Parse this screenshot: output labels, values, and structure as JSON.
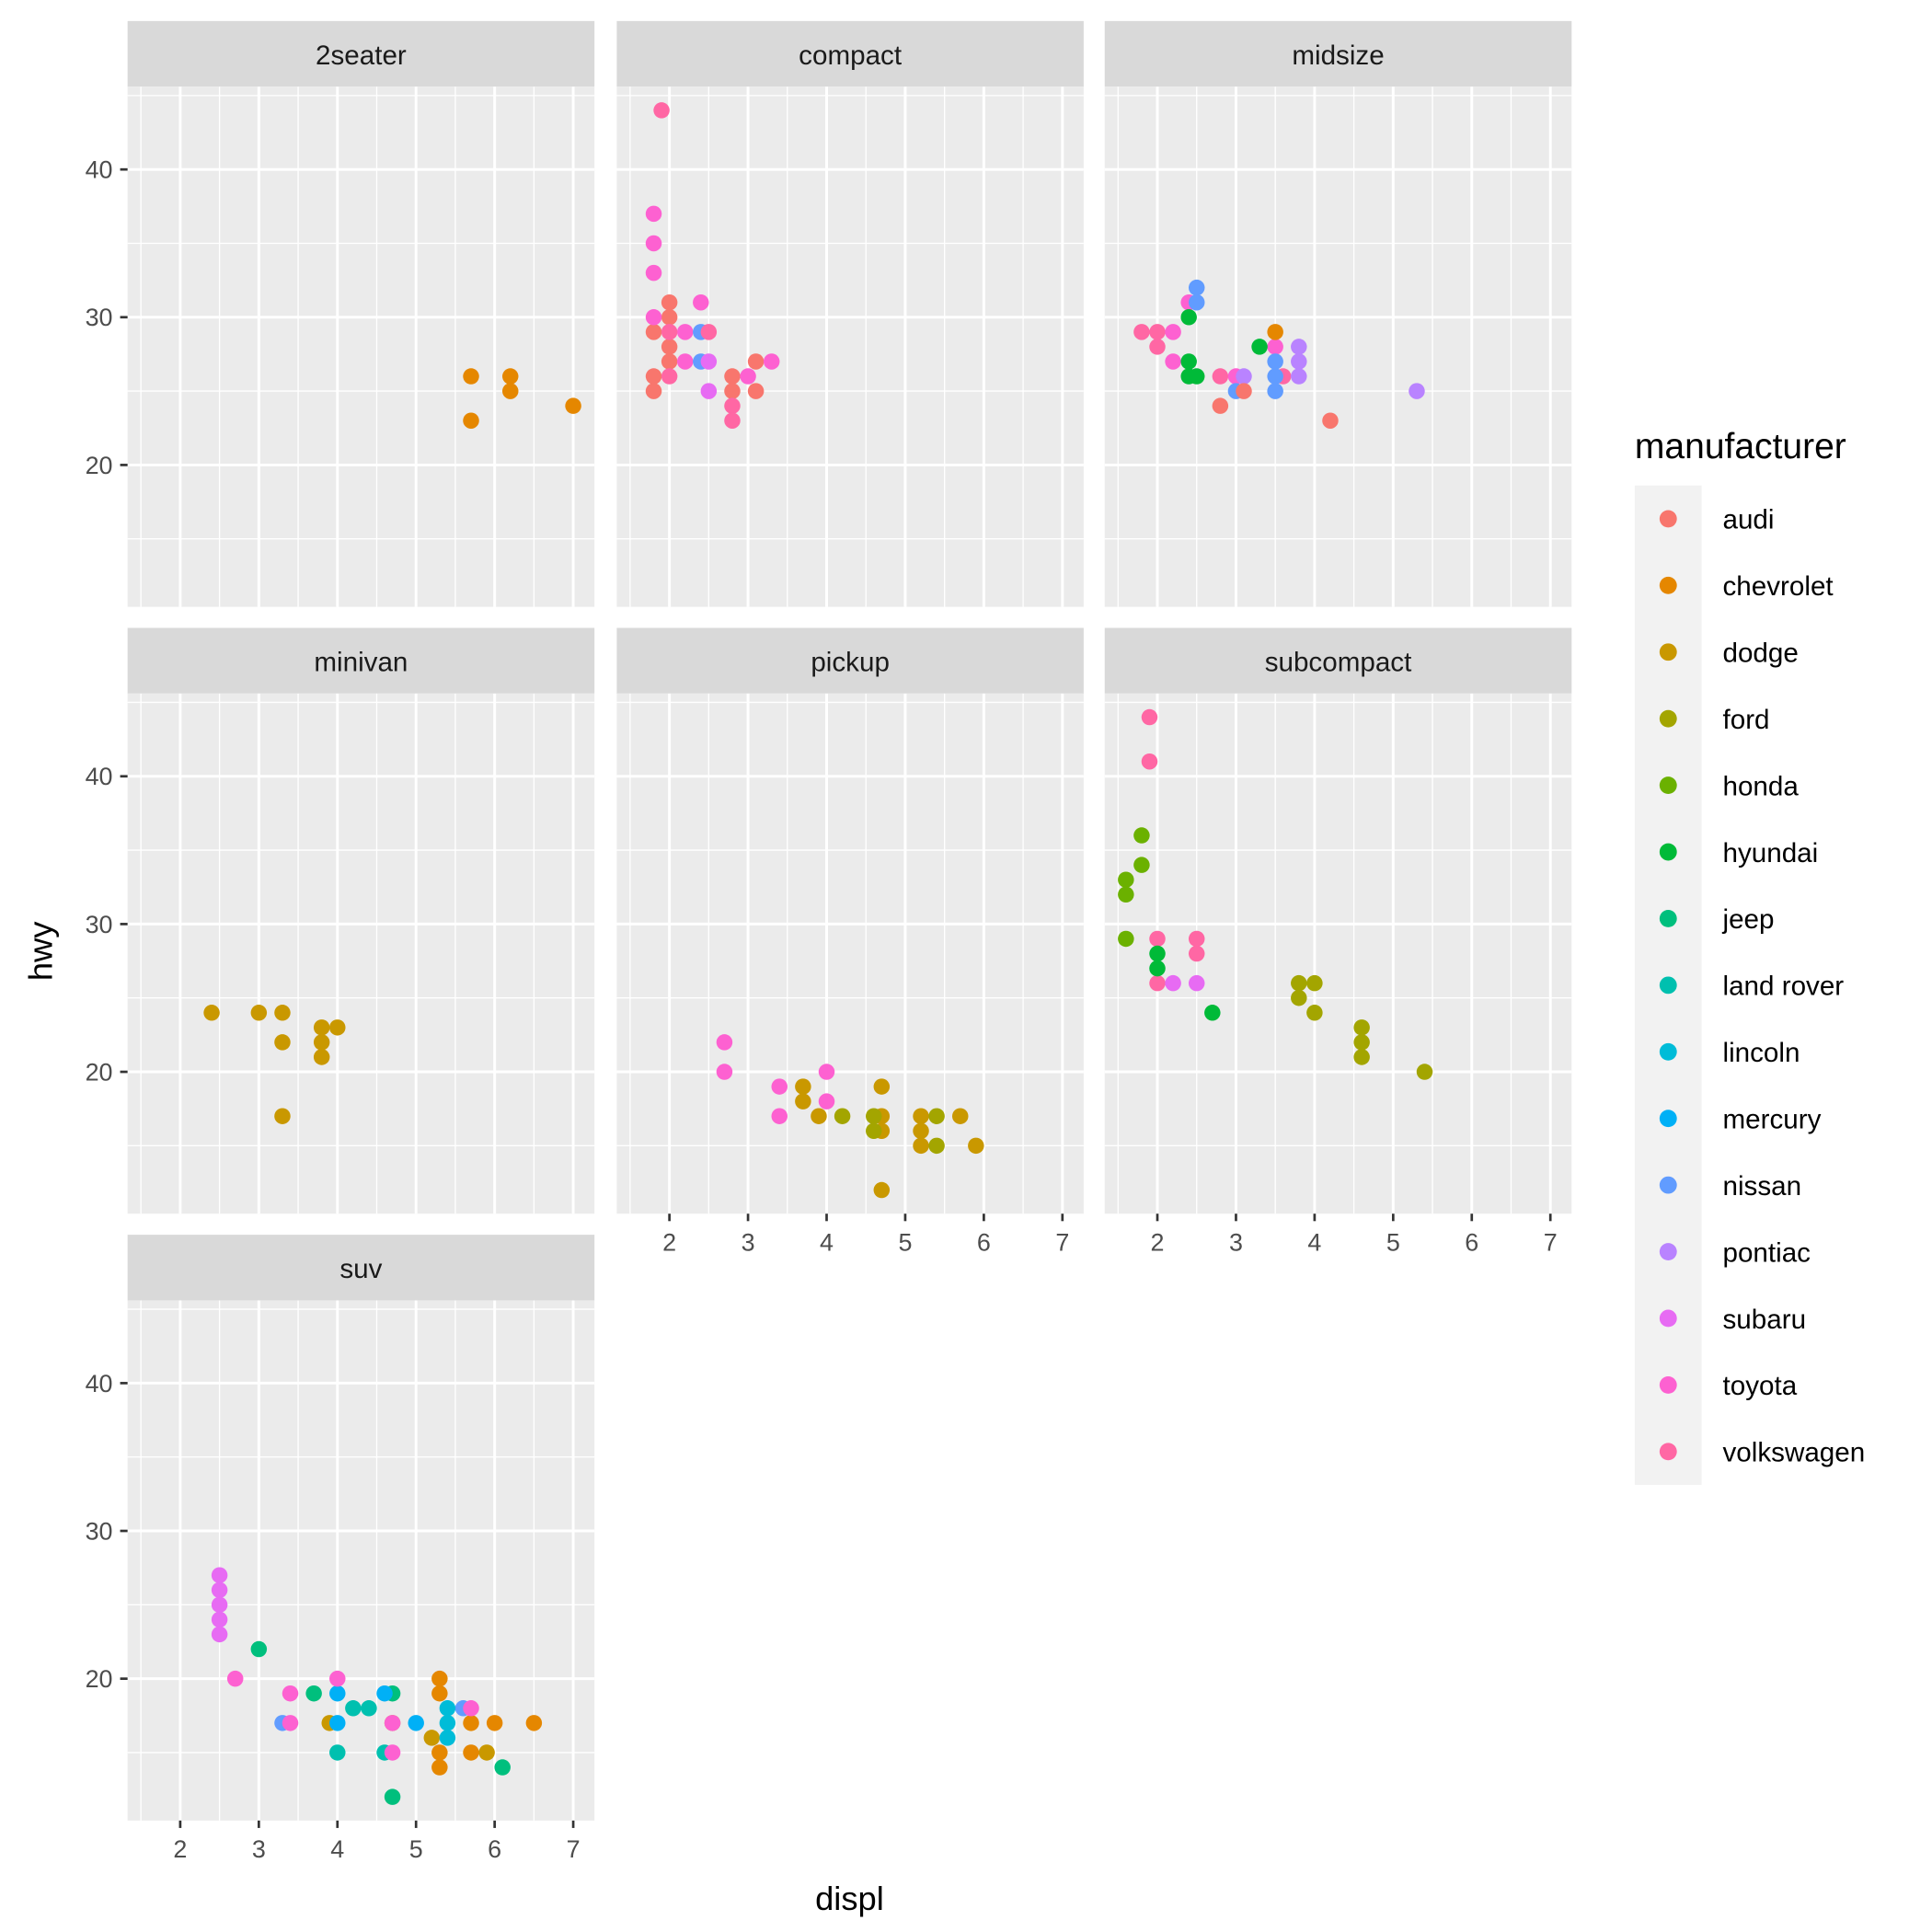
{
  "chart_data": {
    "type": "scatter",
    "facet_by": "class",
    "xlabel": "displ",
    "ylabel": "hwy",
    "xlim": [
      1.33,
      7.27
    ],
    "ylim": [
      10.4,
      45.6
    ],
    "x_ticks": [
      2,
      3,
      4,
      5,
      6,
      7
    ],
    "y_ticks": [
      20,
      30,
      40
    ],
    "grid": true,
    "legend": {
      "title": "manufacturer",
      "placement": "right",
      "entries": [
        {
          "name": "audi",
          "color": "#F8766D"
        },
        {
          "name": "chevrolet",
          "color": "#E58700"
        },
        {
          "name": "dodge",
          "color": "#C99800"
        },
        {
          "name": "ford",
          "color": "#A3A500"
        },
        {
          "name": "honda",
          "color": "#6BB100"
        },
        {
          "name": "hyundai",
          "color": "#00BA38"
        },
        {
          "name": "jeep",
          "color": "#00BF7D"
        },
        {
          "name": "land rover",
          "color": "#00C0AF"
        },
        {
          "name": "lincoln",
          "color": "#00BCD8"
        },
        {
          "name": "mercury",
          "color": "#00B0F6"
        },
        {
          "name": "nissan",
          "color": "#619CFF"
        },
        {
          "name": "pontiac",
          "color": "#B983FF"
        },
        {
          "name": "subaru",
          "color": "#E76BF3"
        },
        {
          "name": "toyota",
          "color": "#FD61D1"
        },
        {
          "name": "volkswagen",
          "color": "#FF67A4"
        }
      ]
    },
    "panels": [
      {
        "title": "2seater",
        "points": [
          [
            "chevrolet",
            5.7,
            26
          ],
          [
            "chevrolet",
            5.7,
            23
          ],
          [
            "chevrolet",
            6.2,
            26
          ],
          [
            "chevrolet",
            6.2,
            25
          ],
          [
            "chevrolet",
            7.0,
            24
          ]
        ]
      },
      {
        "title": "compact",
        "points": [
          [
            "audi",
            1.8,
            29
          ],
          [
            "audi",
            1.8,
            26
          ],
          [
            "audi",
            1.8,
            25
          ],
          [
            "audi",
            2.0,
            31
          ],
          [
            "audi",
            2.0,
            30
          ],
          [
            "audi",
            2.0,
            28
          ],
          [
            "audi",
            2.0,
            27
          ],
          [
            "audi",
            2.8,
            26
          ],
          [
            "audi",
            2.8,
            25
          ],
          [
            "audi",
            3.1,
            27
          ],
          [
            "audi",
            3.1,
            25
          ],
          [
            "toyota",
            1.8,
            37
          ],
          [
            "toyota",
            1.8,
            35
          ],
          [
            "toyota",
            1.8,
            33
          ],
          [
            "toyota",
            1.8,
            30
          ],
          [
            "toyota",
            2.2,
            29
          ],
          [
            "toyota",
            2.2,
            27
          ],
          [
            "toyota",
            2.4,
            31
          ],
          [
            "toyota",
            3.0,
            26
          ],
          [
            "toyota",
            3.3,
            27
          ],
          [
            "nissan",
            2.4,
            29
          ],
          [
            "nissan",
            2.4,
            27
          ],
          [
            "subaru",
            2.5,
            27
          ],
          [
            "subaru",
            2.5,
            25
          ],
          [
            "volkswagen",
            1.9,
            44
          ],
          [
            "volkswagen",
            2.0,
            29
          ],
          [
            "volkswagen",
            2.0,
            26
          ],
          [
            "volkswagen",
            2.5,
            29
          ],
          [
            "volkswagen",
            2.8,
            24
          ],
          [
            "volkswagen",
            2.8,
            23
          ]
        ]
      },
      {
        "title": "midsize",
        "points": [
          [
            "volkswagen",
            1.8,
            29
          ],
          [
            "volkswagen",
            2.0,
            29
          ],
          [
            "volkswagen",
            2.0,
            28
          ],
          [
            "volkswagen",
            2.8,
            26
          ],
          [
            "volkswagen",
            3.6,
            26
          ],
          [
            "toyota",
            2.2,
            29
          ],
          [
            "toyota",
            2.2,
            27
          ],
          [
            "toyota",
            2.4,
            31
          ],
          [
            "toyota",
            3.0,
            26
          ],
          [
            "toyota",
            3.5,
            28
          ],
          [
            "hyundai",
            2.4,
            30
          ],
          [
            "hyundai",
            2.4,
            27
          ],
          [
            "hyundai",
            2.4,
            26
          ],
          [
            "hyundai",
            2.5,
            26
          ],
          [
            "hyundai",
            3.3,
            28
          ],
          [
            "nissan",
            2.5,
            32
          ],
          [
            "nissan",
            2.5,
            31
          ],
          [
            "nissan",
            3.0,
            25
          ],
          [
            "nissan",
            3.5,
            27
          ],
          [
            "nissan",
            3.5,
            26
          ],
          [
            "nissan",
            3.5,
            25
          ],
          [
            "chevrolet",
            3.5,
            29
          ],
          [
            "pontiac",
            3.1,
            26
          ],
          [
            "pontiac",
            3.8,
            28
          ],
          [
            "pontiac",
            3.8,
            27
          ],
          [
            "pontiac",
            3.8,
            26
          ],
          [
            "pontiac",
            5.3,
            25
          ],
          [
            "audi",
            2.8,
            24
          ],
          [
            "audi",
            3.1,
            25
          ],
          [
            "audi",
            4.2,
            23
          ]
        ]
      },
      {
        "title": "minivan",
        "points": [
          [
            "dodge",
            2.4,
            24
          ],
          [
            "dodge",
            3.0,
            24
          ],
          [
            "dodge",
            3.3,
            24
          ],
          [
            "dodge",
            3.3,
            22
          ],
          [
            "dodge",
            3.3,
            17
          ],
          [
            "dodge",
            3.8,
            23
          ],
          [
            "dodge",
            3.8,
            22
          ],
          [
            "dodge",
            3.8,
            21
          ],
          [
            "dodge",
            4.0,
            23
          ]
        ]
      },
      {
        "title": "pickup",
        "points": [
          [
            "toyota",
            2.7,
            22
          ],
          [
            "toyota",
            2.7,
            20
          ],
          [
            "toyota",
            3.4,
            19
          ],
          [
            "toyota",
            3.4,
            17
          ],
          [
            "toyota",
            4.0,
            20
          ],
          [
            "toyota",
            4.0,
            18
          ],
          [
            "dodge",
            3.7,
            19
          ],
          [
            "dodge",
            3.7,
            18
          ],
          [
            "dodge",
            3.9,
            17
          ],
          [
            "dodge",
            4.7,
            19
          ],
          [
            "dodge",
            4.7,
            17
          ],
          [
            "dodge",
            4.7,
            16
          ],
          [
            "dodge",
            4.7,
            12
          ],
          [
            "dodge",
            5.2,
            17
          ],
          [
            "dodge",
            5.2,
            16
          ],
          [
            "dodge",
            5.2,
            15
          ],
          [
            "dodge",
            5.7,
            17
          ],
          [
            "dodge",
            5.9,
            15
          ],
          [
            "ford",
            4.2,
            17
          ],
          [
            "ford",
            4.6,
            17
          ],
          [
            "ford",
            4.6,
            16
          ],
          [
            "ford",
            5.4,
            17
          ],
          [
            "ford",
            5.4,
            15
          ]
        ]
      },
      {
        "title": "subcompact",
        "points": [
          [
            "volkswagen",
            1.9,
            44
          ],
          [
            "volkswagen",
            1.9,
            41
          ],
          [
            "volkswagen",
            2.0,
            29
          ],
          [
            "volkswagen",
            2.0,
            26
          ],
          [
            "volkswagen",
            2.5,
            29
          ],
          [
            "volkswagen",
            2.5,
            28
          ],
          [
            "honda",
            1.6,
            33
          ],
          [
            "honda",
            1.6,
            32
          ],
          [
            "honda",
            1.6,
            29
          ],
          [
            "honda",
            1.8,
            36
          ],
          [
            "honda",
            1.8,
            34
          ],
          [
            "hyundai",
            2.0,
            28
          ],
          [
            "hyundai",
            2.0,
            27
          ],
          [
            "hyundai",
            2.7,
            24
          ],
          [
            "subaru",
            2.2,
            26
          ],
          [
            "subaru",
            2.5,
            26
          ],
          [
            "ford",
            3.8,
            26
          ],
          [
            "ford",
            3.8,
            25
          ],
          [
            "ford",
            4.0,
            26
          ],
          [
            "ford",
            4.0,
            24
          ],
          [
            "ford",
            4.6,
            23
          ],
          [
            "ford",
            4.6,
            22
          ],
          [
            "ford",
            4.6,
            21
          ],
          [
            "ford",
            5.4,
            20
          ]
        ]
      },
      {
        "title": "suv",
        "points": [
          [
            "subaru",
            2.5,
            27
          ],
          [
            "subaru",
            2.5,
            26
          ],
          [
            "subaru",
            2.5,
            25
          ],
          [
            "subaru",
            2.5,
            24
          ],
          [
            "subaru",
            2.5,
            23
          ],
          [
            "jeep",
            3.0,
            22
          ],
          [
            "jeep",
            3.7,
            19
          ],
          [
            "jeep",
            4.7,
            19
          ],
          [
            "jeep",
            4.7,
            12
          ],
          [
            "jeep",
            6.1,
            14
          ],
          [
            "nissan",
            3.3,
            17
          ],
          [
            "nissan",
            5.6,
            18
          ],
          [
            "dodge",
            3.9,
            17
          ],
          [
            "dodge",
            4.7,
            17
          ],
          [
            "dodge",
            5.2,
            16
          ],
          [
            "dodge",
            5.9,
            15
          ],
          [
            "mercury",
            4.0,
            19
          ],
          [
            "mercury",
            4.0,
            17
          ],
          [
            "mercury",
            4.6,
            19
          ],
          [
            "mercury",
            5.0,
            17
          ],
          [
            "land rover",
            4.0,
            15
          ],
          [
            "land rover",
            4.2,
            18
          ],
          [
            "land rover",
            4.4,
            18
          ],
          [
            "land rover",
            4.6,
            15
          ],
          [
            "lincoln",
            5.4,
            18
          ],
          [
            "lincoln",
            5.4,
            17
          ],
          [
            "lincoln",
            5.4,
            16
          ],
          [
            "chevrolet",
            5.3,
            20
          ],
          [
            "chevrolet",
            5.3,
            19
          ],
          [
            "chevrolet",
            5.3,
            15
          ],
          [
            "chevrolet",
            5.3,
            14
          ],
          [
            "chevrolet",
            5.7,
            17
          ],
          [
            "chevrolet",
            5.7,
            15
          ],
          [
            "chevrolet",
            6.0,
            17
          ],
          [
            "chevrolet",
            6.5,
            17
          ],
          [
            "toyota",
            2.7,
            20
          ],
          [
            "toyota",
            3.4,
            19
          ],
          [
            "toyota",
            3.4,
            17
          ],
          [
            "toyota",
            4.0,
            20
          ],
          [
            "toyota",
            4.7,
            17
          ],
          [
            "toyota",
            4.7,
            15
          ],
          [
            "toyota",
            5.7,
            18
          ]
        ]
      }
    ]
  }
}
